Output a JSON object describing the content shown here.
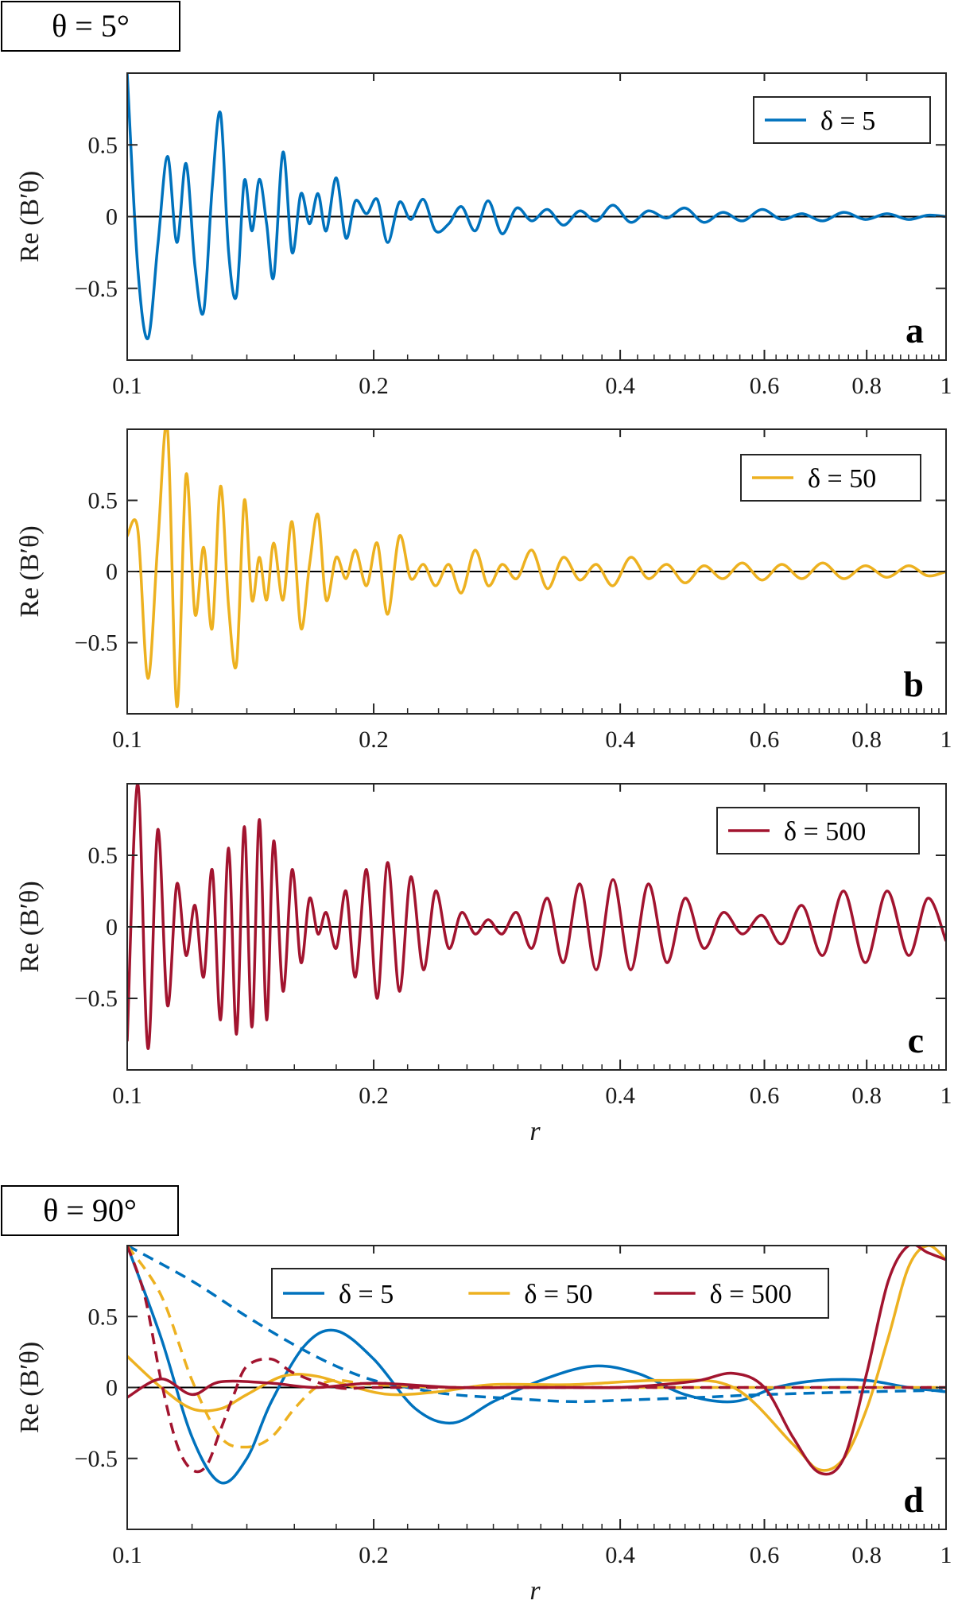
{
  "figure": {
    "label_top": "θ = 5°",
    "label_bottom": "θ = 90°",
    "ylabel": "Re (B′θ)",
    "xlabel": "r"
  },
  "colors": {
    "d5": "#0072BD",
    "d50": "#EDB120",
    "d500": "#A2142F"
  },
  "chart_data": [
    {
      "type": "line",
      "panel": "a",
      "xscale": "log",
      "xlim": [
        0.1,
        1
      ],
      "ylim": [
        -1,
        1
      ],
      "xticks": [
        "0.1",
        "0.2",
        "0.4",
        "0.6",
        "0.8",
        "1"
      ],
      "yticks": [
        "0.5",
        "0",
        "−0.5"
      ],
      "ylabel": "Re (B′θ)",
      "xlabel": "",
      "legend": {
        "location": "top-right",
        "entries": [
          "δ = 5"
        ]
      },
      "series": [
        {
          "name": "δ = 5",
          "color": "#0072BD",
          "style": "solid",
          "x": [
            0.1,
            0.103,
            0.106,
            0.109,
            0.112,
            0.115,
            0.118,
            0.121,
            0.124,
            0.127,
            0.13,
            0.133,
            0.136,
            0.139,
            0.142,
            0.145,
            0.148,
            0.151,
            0.155,
            0.159,
            0.163,
            0.167,
            0.171,
            0.175,
            0.18,
            0.185,
            0.19,
            0.196,
            0.202,
            0.208,
            0.215,
            0.222,
            0.23,
            0.238,
            0.247,
            0.256,
            0.266,
            0.276,
            0.287,
            0.299,
            0.312,
            0.326,
            0.341,
            0.357,
            0.374,
            0.392,
            0.412,
            0.433,
            0.456,
            0.48,
            0.506,
            0.534,
            0.564,
            0.596,
            0.63,
            0.667,
            0.707,
            0.75,
            0.797,
            0.847,
            0.9,
            0.95,
            1.0
          ],
          "y": [
            1.0,
            -0.35,
            -0.85,
            -0.2,
            0.42,
            -0.18,
            0.37,
            -0.35,
            -0.66,
            0.2,
            0.72,
            -0.25,
            -0.55,
            0.25,
            -0.1,
            0.26,
            -0.05,
            -0.42,
            0.45,
            -0.25,
            0.16,
            -0.05,
            0.16,
            -0.1,
            0.27,
            -0.15,
            0.11,
            0.02,
            0.12,
            -0.18,
            0.1,
            -0.02,
            0.12,
            -0.1,
            -0.05,
            0.07,
            -0.1,
            0.11,
            -0.12,
            0.06,
            -0.03,
            0.05,
            -0.06,
            0.04,
            -0.03,
            0.08,
            -0.04,
            0.04,
            -0.01,
            0.06,
            -0.04,
            0.03,
            -0.03,
            0.05,
            -0.02,
            0.02,
            -0.03,
            0.03,
            -0.02,
            0.02,
            -0.02,
            0.01,
            0.0
          ]
        }
      ]
    },
    {
      "type": "line",
      "panel": "b",
      "xscale": "log",
      "xlim": [
        0.1,
        1
      ],
      "ylim": [
        -1,
        1
      ],
      "xticks": [
        "0.1",
        "0.2",
        "0.4",
        "0.6",
        "0.8",
        "1"
      ],
      "yticks": [
        "0.5",
        "0",
        "−0.5"
      ],
      "ylabel": "Re (B′θ)",
      "xlabel": "",
      "legend": {
        "location": "top-right",
        "entries": [
          "δ = 50"
        ]
      },
      "series": [
        {
          "name": "δ = 50",
          "color": "#EDB120",
          "style": "solid",
          "x": [
            0.1,
            0.103,
            0.106,
            0.109,
            0.112,
            0.115,
            0.118,
            0.121,
            0.124,
            0.127,
            0.13,
            0.133,
            0.136,
            0.139,
            0.142,
            0.145,
            0.148,
            0.151,
            0.155,
            0.159,
            0.163,
            0.167,
            0.171,
            0.175,
            0.18,
            0.185,
            0.19,
            0.196,
            0.202,
            0.208,
            0.215,
            0.222,
            0.23,
            0.238,
            0.247,
            0.256,
            0.266,
            0.276,
            0.287,
            0.299,
            0.312,
            0.326,
            0.341,
            0.357,
            0.374,
            0.392,
            0.412,
            0.433,
            0.456,
            0.48,
            0.506,
            0.534,
            0.564,
            0.596,
            0.63,
            0.667,
            0.707,
            0.75,
            0.797,
            0.847,
            0.9,
            0.95,
            1.0
          ],
          "y": [
            0.25,
            0.3,
            -0.75,
            0.2,
            1.0,
            -0.95,
            0.68,
            -0.3,
            0.17,
            -0.4,
            0.6,
            -0.25,
            -0.65,
            0.5,
            -0.2,
            0.1,
            -0.2,
            0.2,
            -0.2,
            0.35,
            -0.4,
            0.05,
            0.4,
            -0.2,
            0.1,
            -0.05,
            0.15,
            -0.1,
            0.2,
            -0.3,
            0.25,
            -0.05,
            0.05,
            -0.1,
            0.05,
            -0.15,
            0.15,
            -0.1,
            0.05,
            -0.05,
            0.15,
            -0.12,
            0.1,
            -0.06,
            0.05,
            -0.1,
            0.1,
            -0.05,
            0.05,
            -0.08,
            0.04,
            -0.05,
            0.06,
            -0.06,
            0.05,
            -0.05,
            0.06,
            -0.05,
            0.04,
            -0.04,
            0.04,
            -0.03,
            0.0
          ]
        }
      ]
    },
    {
      "type": "line",
      "panel": "c",
      "xscale": "log",
      "xlim": [
        0.1,
        1
      ],
      "ylim": [
        -1,
        1
      ],
      "xticks": [
        "0.1",
        "0.2",
        "0.4",
        "0.6",
        "0.8",
        "1"
      ],
      "yticks": [
        "0.5",
        "0",
        "−0.5"
      ],
      "ylabel": "Re (B′θ)",
      "xlabel": "r",
      "legend": {
        "location": "top-right",
        "entries": [
          "δ = 500"
        ]
      },
      "series": [
        {
          "name": "δ = 500",
          "color": "#A2142F",
          "style": "solid",
          "x": [
            0.1,
            0.103,
            0.106,
            0.109,
            0.112,
            0.115,
            0.118,
            0.121,
            0.124,
            0.127,
            0.13,
            0.133,
            0.136,
            0.139,
            0.142,
            0.145,
            0.148,
            0.151,
            0.155,
            0.159,
            0.163,
            0.167,
            0.171,
            0.175,
            0.18,
            0.185,
            0.19,
            0.196,
            0.202,
            0.208,
            0.215,
            0.222,
            0.23,
            0.238,
            0.247,
            0.256,
            0.266,
            0.276,
            0.287,
            0.299,
            0.312,
            0.326,
            0.341,
            0.357,
            0.374,
            0.392,
            0.412,
            0.433,
            0.456,
            0.48,
            0.506,
            0.534,
            0.564,
            0.596,
            0.63,
            0.667,
            0.707,
            0.75,
            0.797,
            0.847,
            0.9,
            0.95,
            1.0
          ],
          "y": [
            -0.8,
            1.0,
            -0.85,
            0.68,
            -0.55,
            0.3,
            -0.2,
            0.15,
            -0.35,
            0.4,
            -0.65,
            0.55,
            -0.75,
            0.7,
            -0.7,
            0.75,
            -0.65,
            0.6,
            -0.45,
            0.4,
            -0.25,
            0.2,
            -0.05,
            0.1,
            -0.15,
            0.25,
            -0.35,
            0.4,
            -0.5,
            0.45,
            -0.45,
            0.35,
            -0.3,
            0.25,
            -0.15,
            0.1,
            -0.05,
            0.05,
            -0.05,
            0.1,
            -0.15,
            0.2,
            -0.25,
            0.3,
            -0.3,
            0.33,
            -0.3,
            0.3,
            -0.25,
            0.2,
            -0.15,
            0.1,
            -0.05,
            0.08,
            -0.12,
            0.15,
            -0.2,
            0.25,
            -0.25,
            0.25,
            -0.2,
            0.2,
            -0.1
          ]
        }
      ]
    },
    {
      "type": "line",
      "panel": "d",
      "xscale": "log",
      "xlim": [
        0.1,
        1
      ],
      "ylim": [
        -1,
        1
      ],
      "xticks": [
        "0.1",
        "0.2",
        "0.4",
        "0.6",
        "0.8",
        "1"
      ],
      "yticks": [
        "0.5",
        "0",
        "−0.5"
      ],
      "ylabel": "Re (B′θ)",
      "xlabel": "r",
      "legend": {
        "location": "top",
        "entries": [
          "δ = 5",
          "δ = 50",
          "δ = 500"
        ]
      },
      "series": [
        {
          "name": "δ = 5",
          "color": "#0072BD",
          "style": "solid",
          "x": [
            0.1,
            0.11,
            0.12,
            0.13,
            0.14,
            0.15,
            0.165,
            0.18,
            0.2,
            0.225,
            0.25,
            0.28,
            0.32,
            0.37,
            0.42,
            0.48,
            0.55,
            0.62,
            0.7,
            0.8,
            0.9,
            1.0
          ],
          "y": [
            1.0,
            0.35,
            -0.35,
            -0.67,
            -0.5,
            -0.1,
            0.3,
            0.4,
            0.2,
            -0.15,
            -0.25,
            -0.1,
            0.05,
            0.15,
            0.1,
            -0.05,
            -0.1,
            0.0,
            0.05,
            0.05,
            0.0,
            -0.03
          ]
        },
        {
          "name": "δ = 5 (dashed)",
          "color": "#0072BD",
          "style": "dashed",
          "x": [
            0.1,
            0.12,
            0.14,
            0.16,
            0.18,
            0.2,
            0.22,
            0.25,
            0.3,
            0.35,
            0.4,
            0.5,
            0.6,
            0.8,
            1.0
          ],
          "y": [
            1.0,
            0.75,
            0.5,
            0.3,
            0.15,
            0.05,
            0.0,
            -0.05,
            -0.08,
            -0.1,
            -0.09,
            -0.07,
            -0.05,
            -0.03,
            -0.02
          ]
        },
        {
          "name": "δ = 50",
          "color": "#EDB120",
          "style": "solid",
          "x": [
            0.1,
            0.11,
            0.12,
            0.13,
            0.14,
            0.155,
            0.17,
            0.19,
            0.21,
            0.24,
            0.28,
            0.35,
            0.45,
            0.55,
            0.65,
            0.7,
            0.75,
            0.8,
            0.85,
            0.9,
            0.95,
            1.0
          ],
          "y": [
            0.22,
            0.0,
            -0.15,
            -0.15,
            -0.05,
            0.08,
            0.08,
            0.0,
            -0.05,
            -0.03,
            0.02,
            0.02,
            0.05,
            0.0,
            -0.4,
            -0.58,
            -0.5,
            -0.15,
            0.35,
            0.85,
            1.0,
            0.9
          ]
        },
        {
          "name": "δ = 50 (dashed)",
          "color": "#EDB120",
          "style": "dashed",
          "x": [
            0.1,
            0.11,
            0.12,
            0.13,
            0.14,
            0.15,
            0.16,
            0.17,
            0.18,
            0.2,
            0.25,
            0.3,
            0.4,
            0.6,
            1.0
          ],
          "y": [
            1.0,
            0.65,
            0.05,
            -0.35,
            -0.42,
            -0.35,
            -0.15,
            0.0,
            0.05,
            0.02,
            0.0,
            0.0,
            0.0,
            0.0,
            0.0
          ]
        },
        {
          "name": "δ = 500",
          "color": "#A2142F",
          "style": "solid",
          "x": [
            0.1,
            0.11,
            0.12,
            0.13,
            0.15,
            0.17,
            0.2,
            0.25,
            0.3,
            0.35,
            0.4,
            0.45,
            0.5,
            0.55,
            0.6,
            0.65,
            0.7,
            0.75,
            0.8,
            0.85,
            0.9,
            0.95,
            1.0
          ],
          "y": [
            -0.07,
            0.06,
            -0.05,
            0.04,
            0.03,
            0.0,
            0.03,
            0.0,
            0.0,
            0.0,
            0.0,
            0.02,
            0.05,
            0.1,
            0.0,
            -0.35,
            -0.6,
            -0.5,
            0.1,
            0.75,
            1.0,
            0.95,
            0.9
          ]
        },
        {
          "name": "δ = 500 (dashed)",
          "color": "#A2142F",
          "style": "dashed",
          "x": [
            0.1,
            0.105,
            0.11,
            0.115,
            0.12,
            0.125,
            0.13,
            0.135,
            0.14,
            0.15,
            0.16,
            0.18,
            0.2,
            0.25,
            0.4,
            1.0
          ],
          "y": [
            1.0,
            0.65,
            0.05,
            -0.4,
            -0.58,
            -0.55,
            -0.3,
            -0.05,
            0.15,
            0.2,
            0.1,
            0.0,
            0.0,
            0.0,
            0.0,
            0.0
          ]
        }
      ]
    }
  ]
}
